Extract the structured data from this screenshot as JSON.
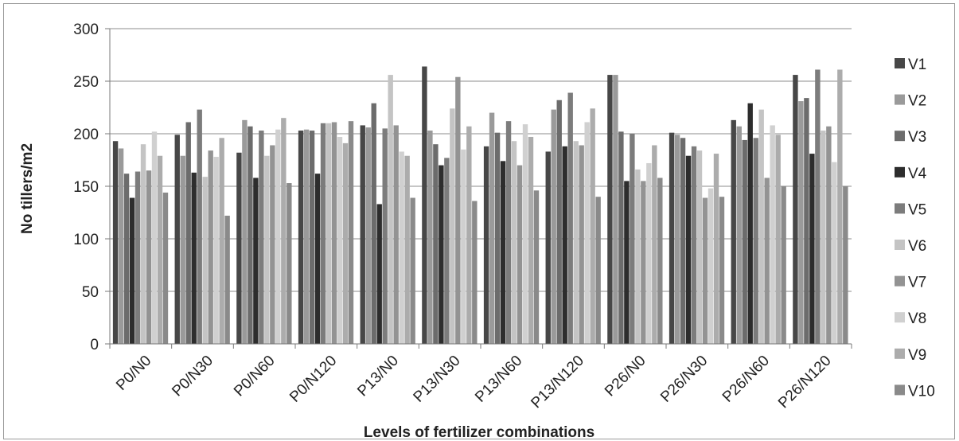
{
  "chart_data": {
    "type": "bar",
    "title": "",
    "xlabel": "Levels of fertilizer combinations",
    "ylabel": "No tillers/m2",
    "ylim": [
      0,
      300
    ],
    "yticks": [
      0,
      50,
      100,
      150,
      200,
      250,
      300
    ],
    "grid": true,
    "legend_position": "right",
    "categories": [
      "P0/N0",
      "P0/N30",
      "P0/N60",
      "P0/N120",
      "P13/N0",
      "P13/N30",
      "P13/N60",
      "P13/N120",
      "P26/N0",
      "P26/N30",
      "P26/N60",
      "P26/N120"
    ],
    "series": [
      {
        "name": "V1",
        "color": "#474747",
        "values": [
          193,
          199,
          182,
          203,
          208,
          264,
          188,
          183,
          256,
          201,
          213,
          256
        ]
      },
      {
        "name": "V2",
        "color": "#9a9a9a",
        "values": [
          186,
          179,
          213,
          204,
          206,
          203,
          220,
          223,
          256,
          199,
          207,
          231
        ]
      },
      {
        "name": "V3",
        "color": "#6c6c6c",
        "values": [
          162,
          211,
          207,
          203,
          229,
          190,
          201,
          232,
          202,
          196,
          194,
          234
        ]
      },
      {
        "name": "V4",
        "color": "#2d2d2d",
        "values": [
          139,
          163,
          158,
          162,
          133,
          170,
          174,
          188,
          155,
          179,
          229,
          181
        ]
      },
      {
        "name": "V5",
        "color": "#7c7c7c",
        "values": [
          164,
          223,
          203,
          210,
          205,
          177,
          212,
          239,
          200,
          188,
          196,
          261
        ]
      },
      {
        "name": "V6",
        "color": "#c4c4c4",
        "values": [
          190,
          159,
          179,
          210,
          256,
          224,
          193,
          193,
          166,
          184,
          223,
          203
        ]
      },
      {
        "name": "V7",
        "color": "#939393",
        "values": [
          165,
          184,
          189,
          211,
          208,
          254,
          170,
          189,
          155,
          139,
          158,
          207
        ]
      },
      {
        "name": "V8",
        "color": "#d0d0d0",
        "values": [
          202,
          178,
          204,
          197,
          183,
          185,
          209,
          211,
          172,
          148,
          208,
          173
        ]
      },
      {
        "name": "V9",
        "color": "#acacac",
        "values": [
          179,
          196,
          215,
          191,
          179,
          207,
          197,
          224,
          189,
          181,
          199,
          261
        ]
      },
      {
        "name": "V10",
        "color": "#8a8a8a",
        "values": [
          144,
          122,
          153,
          212,
          139,
          136,
          146,
          140,
          158,
          140,
          150,
          150
        ]
      }
    ]
  }
}
